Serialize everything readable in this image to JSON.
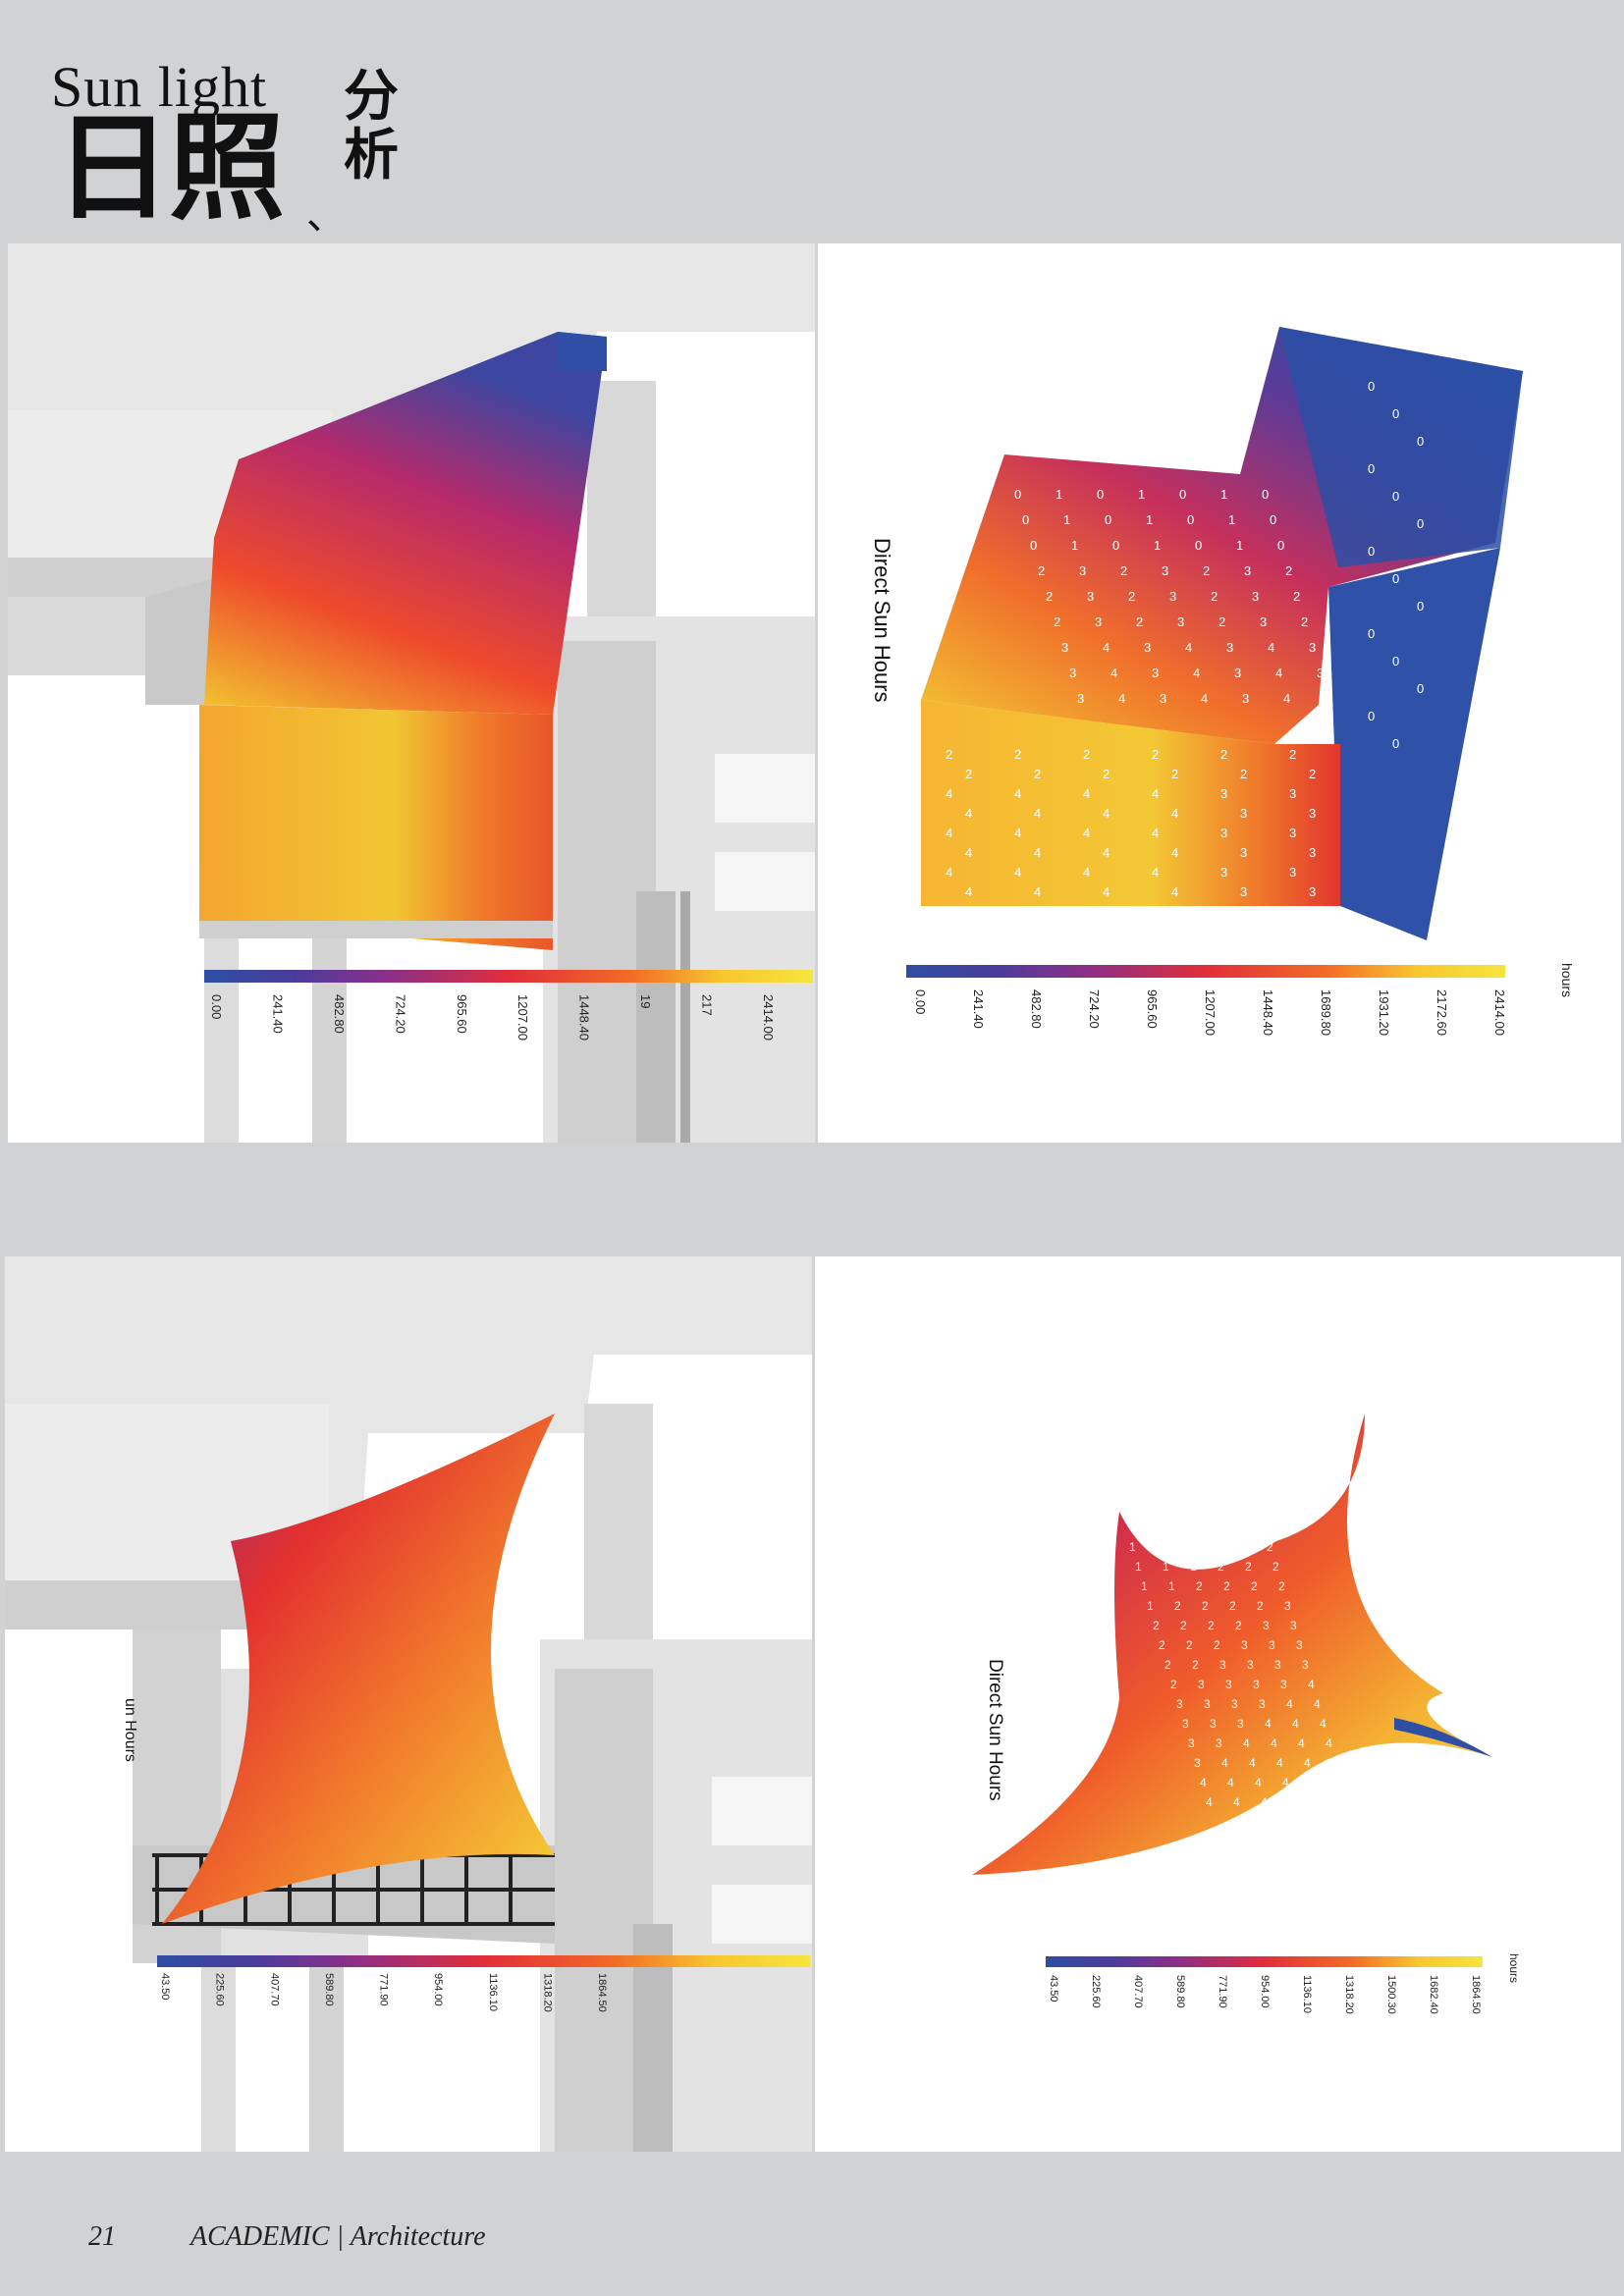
{
  "header": {
    "title_en": "Sun light",
    "title_cn_main": "日照",
    "title_cn_sep": "、",
    "title_cn_side": "分析"
  },
  "panels": {
    "top_right": {
      "legend_title": "Direct Sun Hours",
      "unit": "hours",
      "ticks": [
        "0.00",
        "241.40",
        "482.80",
        "724.20",
        "965.60",
        "1207.00",
        "1448.40",
        "1689.80",
        "1931.20",
        "2172.60",
        "2414.00"
      ]
    },
    "top_left": {
      "ticks": [
        "0.00",
        "241.40",
        "482.80",
        "724.20",
        "965.60",
        "1207.00",
        "1448.40",
        "19",
        "217",
        "2414.00"
      ]
    },
    "bottom_right": {
      "legend_title": "Direct Sun Hours",
      "unit": "hours",
      "ticks": [
        "43.50",
        "225.60",
        "407.70",
        "589.80",
        "771.90",
        "954.00",
        "1136.10",
        "1318.20",
        "1500.30",
        "1682.40",
        "1864.50"
      ]
    },
    "bottom_left": {
      "legend_title": "un Hours",
      "ticks": [
        "43.50",
        "225.60",
        "407.70",
        "589.80",
        "771.90",
        "954.00",
        "1136.10",
        "1318.20",
        "1864.50"
      ]
    }
  },
  "footer": {
    "page_number": "21",
    "label": "ACADEMIC | Architecture"
  },
  "colors": {
    "page_bg": "#d1d2d4",
    "scale": [
      "#2e4ea3",
      "#4b3c9c",
      "#7a2f8f",
      "#b52a6b",
      "#e12d3a",
      "#ee4a2b",
      "#f26b26",
      "#f59a2c",
      "#f8c52f",
      "#f4e63b"
    ]
  }
}
